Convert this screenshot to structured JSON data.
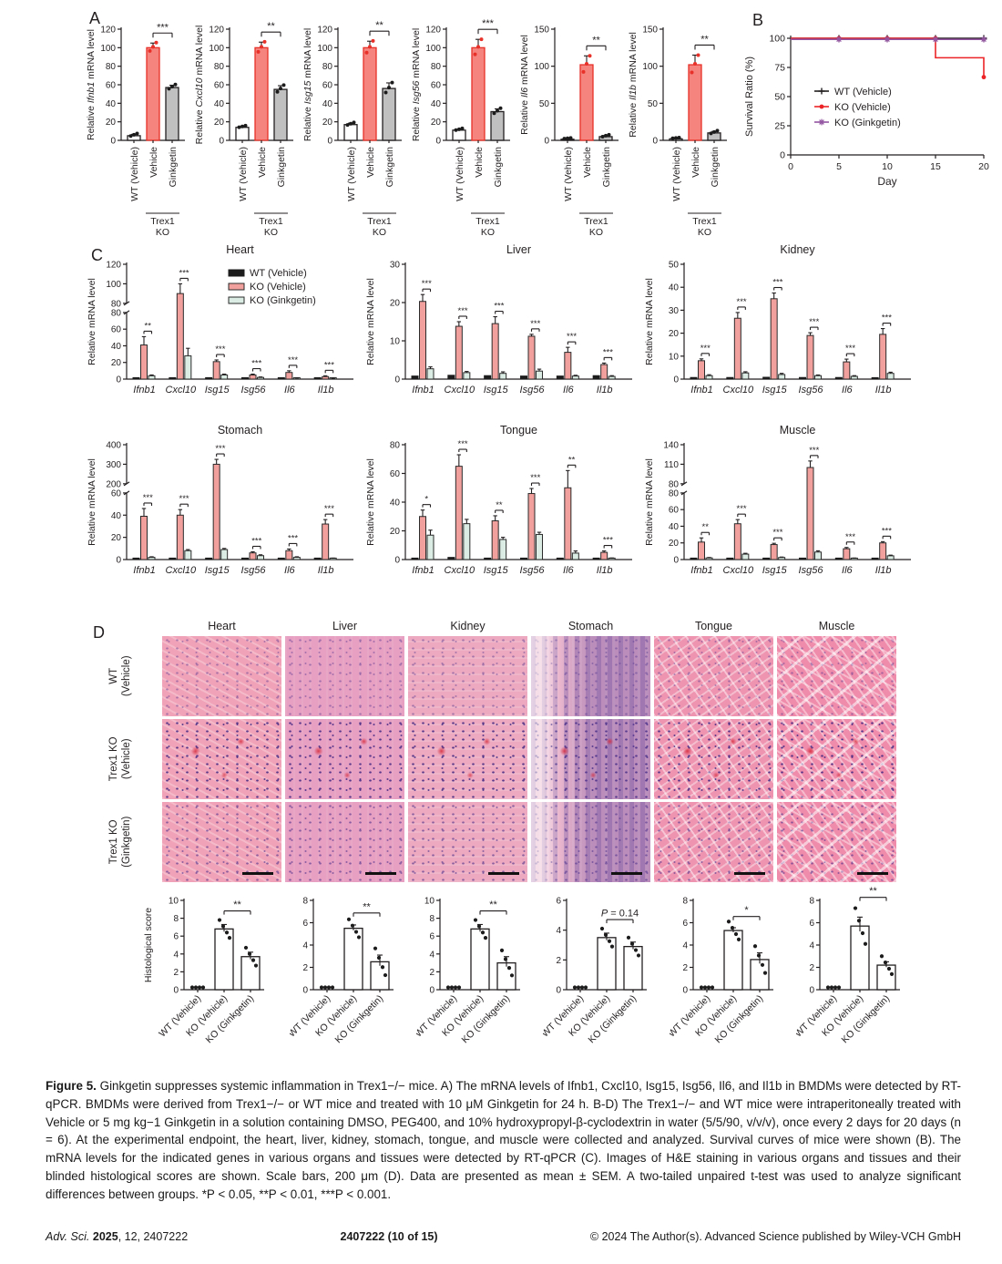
{
  "panels": {
    "A": "A",
    "B": "B",
    "C": "C",
    "D": "D"
  },
  "colors": {
    "bar_wt_fill": "#ffffff",
    "bar_outline": "#231f20",
    "bar_red_fill": "#f5837e",
    "bar_red_stroke": "#e73129",
    "bar_gray_fill": "#c0c0c0",
    "c_black": "#1c1c1c",
    "c_salmon": "#f2a09d",
    "c_mint": "#daece3",
    "c_edge": "#2b2b2b",
    "survival_black": "#231f20",
    "survival_red": "#ec2427",
    "survival_purple": "#9355a1",
    "dot_red": "#e73129",
    "dot_black": "#1c1c1c"
  },
  "chart_data": {
    "note": "all chart values are stored in panelA/panelB/panelC/panelD below"
  },
  "panelA": {
    "ylabel_prefix": "Relative ",
    "ylabel_suffix": " mRNA level",
    "categories": [
      "WT (Vehicle)",
      "Vehicle",
      "Ginkgetin"
    ],
    "group_label": [
      "Trex1",
      "KO"
    ],
    "charts": [
      {
        "gene": "Ifnb1",
        "ymax": 120,
        "yticks": [
          0,
          20,
          40,
          60,
          80,
          100,
          120
        ],
        "values": [
          5,
          100,
          57
        ],
        "errors": [
          1.5,
          5,
          2.5
        ],
        "sig": "***"
      },
      {
        "gene": "Cxcl10",
        "ymax": 120,
        "yticks": [
          0,
          20,
          40,
          60,
          80,
          100,
          120
        ],
        "values": [
          14,
          100,
          55
        ],
        "errors": [
          1,
          6,
          4
        ],
        "sig": "**"
      },
      {
        "gene": "Isg15",
        "ymax": 120,
        "yticks": [
          0,
          20,
          40,
          60,
          80,
          100,
          120
        ],
        "values": [
          17,
          100,
          56
        ],
        "errors": [
          1.5,
          7,
          6
        ],
        "sig": "**"
      },
      {
        "gene": "Isg56",
        "ymax": 120,
        "yticks": [
          0,
          20,
          40,
          60,
          80,
          100,
          120
        ],
        "values": [
          11,
          100,
          31
        ],
        "errors": [
          1,
          9,
          3
        ],
        "sig": "***"
      },
      {
        "gene": "Il6",
        "ymax": 150,
        "yticks": [
          0,
          50,
          100,
          150
        ],
        "values": [
          1.5,
          102,
          5
        ],
        "errors": [
          0.5,
          12,
          1.5
        ],
        "sig": "**"
      },
      {
        "gene": "Il1b",
        "ymax": 150,
        "yticks": [
          0,
          50,
          100,
          150
        ],
        "values": [
          2,
          102,
          10
        ],
        "errors": [
          0.5,
          13,
          2
        ],
        "sig": "**"
      }
    ]
  },
  "panelB": {
    "type": "line",
    "ylabel": "Survival Ratio (%)",
    "xlabel": "Day",
    "yticks": [
      0,
      25,
      50,
      75,
      100
    ],
    "xticks": [
      0,
      5,
      10,
      15,
      20
    ],
    "xmax": 20,
    "ymax": 100,
    "series": [
      {
        "name": "WT (Vehicle)",
        "marker": "plus",
        "points": [
          [
            0,
            100
          ],
          [
            20,
            100
          ]
        ],
        "marker_days": [
          5,
          10,
          15,
          20
        ],
        "extra_markers": []
      },
      {
        "name": "KO (Vehicle)",
        "marker": "dot",
        "points": [
          [
            0,
            100
          ],
          [
            15,
            100
          ],
          [
            15,
            83.3
          ],
          [
            20,
            83.3
          ],
          [
            20,
            66.7
          ]
        ],
        "marker_days": [
          5,
          10,
          15
        ],
        "extra_markers": [
          [
            20,
            66.7
          ]
        ]
      },
      {
        "name": "KO (Ginkgetin)",
        "marker": "star",
        "points": [
          [
            0,
            100
          ],
          [
            20,
            100
          ]
        ],
        "marker_days": [
          5,
          10,
          15,
          20
        ],
        "extra_markers": []
      }
    ]
  },
  "panelC": {
    "type": "grouped-bar",
    "ylabel": "Relative mRNA level",
    "genes": [
      "Ifnb1",
      "Cxcl10",
      "Isg15",
      "Isg56",
      "Il6",
      "Il1b"
    ],
    "legend": [
      "WT (Vehicle)",
      "KO (Vehicle)",
      "KO (Ginkgetin)"
    ],
    "charts": [
      {
        "title": "Heart",
        "axis_break": {
          "lower_max": 80,
          "upper_min": 80,
          "upper_max": 120
        },
        "lower_ticks": [
          0,
          20,
          40,
          60,
          80
        ],
        "upper_ticks": [
          80,
          100,
          120
        ],
        "wt": [
          1,
          1,
          1,
          0.8,
          0.8,
          0.8
        ],
        "kov": [
          41,
          90,
          21,
          5,
          8,
          3
        ],
        "kov_err": [
          10,
          10,
          2,
          1,
          2,
          1
        ],
        "kog": [
          4,
          28,
          5,
          2,
          1,
          0.6
        ],
        "kog_err": [
          1,
          9,
          1,
          0.6,
          0.3,
          0.2
        ],
        "sig": [
          "**",
          "***",
          "***",
          "***",
          "***",
          "***"
        ]
      },
      {
        "title": "Liver",
        "ymax": 30,
        "yticks": [
          0,
          10,
          20,
          30
        ],
        "wt": [
          0.8,
          1,
          0.9,
          0.8,
          0.8,
          0.9
        ],
        "kov": [
          20.3,
          13.8,
          14.5,
          11.2,
          7,
          3.8
        ],
        "kov_err": [
          1.8,
          1.2,
          1.8,
          0.5,
          1.3,
          0.4
        ],
        "kog": [
          2.7,
          1.7,
          1.5,
          2.1,
          0.8,
          0.7
        ],
        "kog_err": [
          0.5,
          0.3,
          0.4,
          0.5,
          0.2,
          0.2
        ],
        "sig": [
          "***",
          "***",
          "***",
          "***",
          "***",
          "***"
        ]
      },
      {
        "title": "Kidney",
        "ymax": 50,
        "yticks": [
          0,
          10,
          20,
          30,
          40,
          50
        ],
        "wt": [
          0.7,
          0.7,
          0.8,
          0.7,
          0.7,
          0.4
        ],
        "kov": [
          8,
          26.5,
          35,
          19,
          7.5,
          19.5
        ],
        "kov_err": [
          0.8,
          2.5,
          2.5,
          1.2,
          1.2,
          2.5
        ],
        "kog": [
          1.5,
          2.7,
          2,
          1.5,
          1.2,
          2.5
        ],
        "kog_err": [
          0.4,
          0.5,
          0.5,
          0.3,
          0.3,
          0.5
        ],
        "sig": [
          "***",
          "***",
          "***",
          "***",
          "***",
          "***"
        ]
      },
      {
        "title": "Stomach",
        "axis_break": {
          "lower_max": 60,
          "upper_min": 200,
          "upper_max": 400
        },
        "lower_ticks": [
          0,
          20,
          40,
          60
        ],
        "upper_ticks": [
          200,
          300,
          400
        ],
        "wt": [
          1,
          1.2,
          1,
          0.5,
          0.5,
          0.5
        ],
        "kov": [
          39,
          40,
          300,
          6,
          8,
          32
        ],
        "kov_err": [
          7,
          5,
          25,
          1,
          1.5,
          4
        ],
        "kog": [
          2,
          8,
          9,
          3.5,
          2,
          1
        ],
        "kog_err": [
          0.5,
          1,
          1,
          0.8,
          0.5,
          0.3
        ],
        "sig": [
          "***",
          "***",
          "***",
          "***",
          "***",
          "***"
        ]
      },
      {
        "title": "Tongue",
        "ymax": 80,
        "yticks": [
          0,
          20,
          40,
          60,
          80
        ],
        "wt": [
          1,
          1.5,
          1,
          0.8,
          0.5,
          0.8
        ],
        "kov": [
          30,
          65,
          27,
          46,
          50,
          5
        ],
        "kov_err": [
          4.5,
          8,
          3.5,
          3.5,
          12,
          1
        ],
        "kog": [
          17,
          25,
          14,
          17.5,
          4.5,
          0.8
        ],
        "kog_err": [
          3.5,
          3,
          1.5,
          1.5,
          1.5,
          0.3
        ],
        "sig": [
          "*",
          "***",
          "**",
          "***",
          "**",
          "***"
        ]
      },
      {
        "title": "Muscle",
        "axis_break": {
          "lower_max": 80,
          "upper_min": 80,
          "upper_max": 140
        },
        "lower_ticks": [
          0,
          20,
          40,
          60,
          80
        ],
        "upper_ticks": [
          80,
          110,
          140
        ],
        "wt": [
          0.5,
          0.8,
          0.6,
          0.5,
          0.6,
          0.8
        ],
        "kov": [
          21,
          43,
          18,
          105,
          13,
          20
        ],
        "kov_err": [
          5,
          5,
          1.5,
          10,
          1.5,
          1.5
        ],
        "kog": [
          2,
          6.5,
          2.5,
          9,
          1.5,
          4.5
        ],
        "kog_err": [
          0.5,
          1,
          0.5,
          1.5,
          0.3,
          0.8
        ],
        "sig": [
          "**",
          "***",
          "***",
          "***",
          "***",
          "***"
        ]
      }
    ]
  },
  "panelD": {
    "columns": [
      "Heart",
      "Liver",
      "Kidney",
      "Stomach",
      "Tongue",
      "Muscle"
    ],
    "rows": [
      "WT\n(Vehicle)",
      "Trex1 KO\n(Vehicle)",
      "Trex1 KO\n(Ginkgetin)"
    ],
    "score_ylabel": "Histological score",
    "score_categories": [
      "WT (Vehicle)",
      "KO (Vehicle)",
      "KO (Ginkgetin)"
    ],
    "scores": [
      {
        "organ": "Heart",
        "ymax": 10,
        "yticks": [
          0,
          2,
          4,
          6,
          8,
          10
        ],
        "values": [
          0,
          6.8,
          3.7
        ],
        "errors": [
          0,
          0.5,
          0.5
        ],
        "sig": "**"
      },
      {
        "organ": "Liver",
        "ymax": 8,
        "yticks": [
          0,
          2,
          4,
          6,
          8
        ],
        "values": [
          0,
          5.5,
          2.5
        ],
        "errors": [
          0,
          0.3,
          0.6
        ],
        "sig": "**"
      },
      {
        "organ": "Kidney",
        "ymax": 10,
        "yticks": [
          0,
          2,
          4,
          6,
          8,
          10
        ],
        "values": [
          0,
          6.8,
          3.0
        ],
        "errors": [
          0,
          0.5,
          0.7
        ],
        "sig": "**"
      },
      {
        "organ": "Stomach",
        "ymax": 6,
        "yticks": [
          0,
          2,
          4,
          6
        ],
        "values": [
          0,
          3.5,
          2.9
        ],
        "errors": [
          0,
          0.3,
          0.3
        ],
        "sig": "P = 0.14"
      },
      {
        "organ": "Tongue",
        "ymax": 8,
        "yticks": [
          0,
          2,
          4,
          6,
          8
        ],
        "values": [
          0,
          5.3,
          2.7
        ],
        "errors": [
          0,
          0.25,
          0.6
        ],
        "sig": "*"
      },
      {
        "organ": "Muscle",
        "ymax": 8,
        "yticks": [
          0,
          2,
          4,
          6,
          8
        ],
        "values": [
          0,
          5.7,
          2.2
        ],
        "errors": [
          0,
          0.8,
          0.3
        ],
        "sig": "**"
      }
    ]
  },
  "caption": {
    "label": "Figure 5.",
    "text": " Ginkgetin suppresses systemic inflammation in Trex1−/− mice. A) The mRNA levels of Ifnb1, Cxcl10, Isg15, Isg56, Il6, and Il1b in BMDMs were detected by RT-qPCR. BMDMs were derived from Trex1−/− or WT mice and treated with 10 μM Ginkgetin for 24 h. B-D) The Trex1−/− and WT mice were intraperitoneally treated with Vehicle or 5 mg kg−1 Ginkgetin in a solution containing DMSO, PEG400, and 10% hydroxypropyl-β-cyclodextrin in water (5/5/90, v/v/v), once every 2 days for 20 days (n = 6). At the experimental endpoint, the heart, liver, kidney, stomach, tongue, and muscle were collected and analyzed. Survival curves of mice were shown (B). The mRNA levels for the indicated genes in various organs and tissues were detected by RT-qPCR (C). Images of H&E staining in various organs and tissues and their blinded histological scores are shown. Scale bars, 200 μm (D). Data are presented as mean ± SEM. A two-tailed unpaired t-test was used to analyze significant differences between groups. *P < 0.05, **P < 0.01, ***P < 0.001."
  },
  "footer": {
    "left_italic": "Adv. Sci.",
    "left_bold": " 2025",
    "left_rest": ", 12, 2407222",
    "center": "2407222 (10 of 15)",
    "right": "© 2024 The Author(s). Advanced Science published by Wiley-VCH GmbH"
  }
}
